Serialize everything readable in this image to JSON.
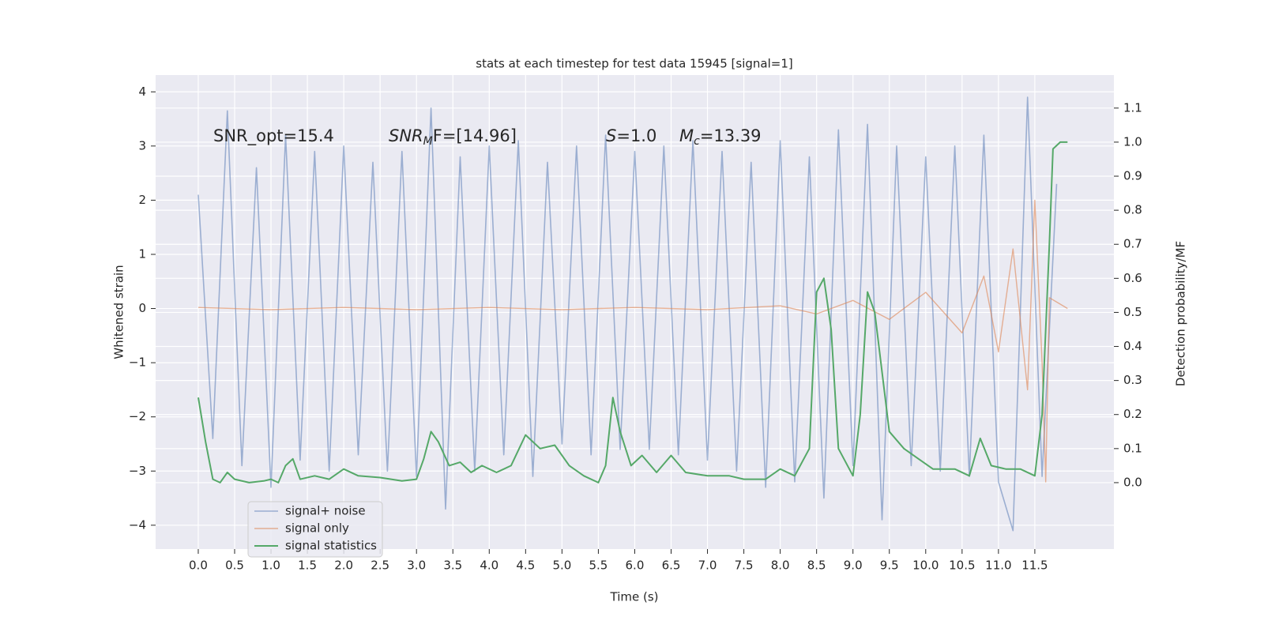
{
  "chart_data": {
    "type": "line",
    "title": "stats at each timestep for test data 15945 [signal=1]",
    "xlabel": "Time (s)",
    "ylabel": "Whitened strain",
    "y2label": "Detection probability/MF",
    "annotations": [
      {
        "base": "SNR_opt=15.4"
      },
      {
        "base": "SNR",
        "sub": "M",
        "rest": "F=[14.96]",
        "italic": true
      },
      {
        "base": "S",
        "rest": "=1.0",
        "italic": true
      },
      {
        "base": "M",
        "sub": "c",
        "rest": "=13.39",
        "italic": true
      }
    ],
    "xlim": [
      -0.586,
      12.587
    ],
    "xticks": [
      {
        "value": 0,
        "label": "0.0"
      },
      {
        "value": 0.5,
        "label": "0.5"
      },
      {
        "value": 1,
        "label": "1.0"
      },
      {
        "value": 1.5,
        "label": "1.5"
      },
      {
        "value": 2,
        "label": "2.0"
      },
      {
        "value": 2.5,
        "label": "2.5"
      },
      {
        "value": 3,
        "label": "3.0"
      },
      {
        "value": 3.5,
        "label": "3.5"
      },
      {
        "value": 4,
        "label": "4.0"
      },
      {
        "value": 4.5,
        "label": "4.5"
      },
      {
        "value": 5,
        "label": "5.0"
      },
      {
        "value": 5.5,
        "label": "5.5"
      },
      {
        "value": 6,
        "label": "6.0"
      },
      {
        "value": 6.5,
        "label": "6.5"
      },
      {
        "value": 7,
        "label": "7.0"
      },
      {
        "value": 7.5,
        "label": "7.5"
      },
      {
        "value": 8,
        "label": "8.0"
      },
      {
        "value": 8.5,
        "label": "8.5"
      },
      {
        "value": 9,
        "label": "9.0"
      },
      {
        "value": 9.5,
        "label": "9.5"
      },
      {
        "value": 10,
        "label": "10.0"
      },
      {
        "value": 10.5,
        "label": "10.5"
      },
      {
        "value": 11,
        "label": "11.0"
      },
      {
        "value": 11.5,
        "label": "11.5"
      }
    ],
    "ylim": [
      -4.44,
      4.31
    ],
    "yticks": [
      {
        "value": -4,
        "label": "−4"
      },
      {
        "value": -3,
        "label": "−3"
      },
      {
        "value": -2,
        "label": "−2"
      },
      {
        "value": -1,
        "label": "−1"
      },
      0,
      1,
      2,
      3,
      4
    ],
    "y2lim": [
      -0.195,
      1.197
    ],
    "y2ticks": [
      {
        "value": 0,
        "label": "0.0"
      },
      {
        "value": 0.1,
        "label": "0.1"
      },
      {
        "value": 0.2,
        "label": "0.2"
      },
      {
        "value": 0.3,
        "label": "0.3"
      },
      {
        "value": 0.4,
        "label": "0.4"
      },
      {
        "value": 0.5,
        "label": "0.5"
      },
      {
        "value": 0.6,
        "label": "0.6"
      },
      {
        "value": 0.7,
        "label": "0.7"
      },
      {
        "value": 0.8,
        "label": "0.8"
      },
      {
        "value": 0.9,
        "label": "0.9"
      },
      {
        "value": 1,
        "label": "1.0"
      },
      {
        "value": 1.1,
        "label": "1.1"
      }
    ],
    "grid": true,
    "legend": "lower left",
    "series": [
      {
        "name": "signal+ noise",
        "color": "#4c72b0",
        "x": [
          0,
          0.2,
          0.4,
          0.6,
          0.8,
          1,
          1.2,
          1.4,
          1.6,
          1.8,
          2,
          2.2,
          2.4,
          2.6,
          2.8,
          3,
          3.2,
          3.4,
          3.6,
          3.8,
          4,
          4.2,
          4.4,
          4.6,
          4.8,
          5,
          5.2,
          5.4,
          5.6,
          5.8,
          6,
          6.2,
          6.4,
          6.6,
          6.8,
          7,
          7.2,
          7.4,
          7.6,
          7.8,
          8,
          8.2,
          8.4,
          8.6,
          8.8,
          9,
          9.2,
          9.4,
          9.6,
          9.8,
          10,
          10.2,
          10.4,
          10.6,
          10.8,
          11,
          11.2,
          11.4,
          11.6,
          11.8
        ],
        "values": [
          2.1,
          -2.4,
          3.65,
          -2.9,
          2.6,
          -3.3,
          3.2,
          -2.8,
          2.9,
          -3.0,
          3.0,
          -2.7,
          2.7,
          -3.0,
          2.9,
          -3.1,
          3.7,
          -3.7,
          2.8,
          -3.0,
          3.0,
          -2.7,
          3.1,
          -3.1,
          2.7,
          -2.5,
          3.0,
          -2.7,
          3.2,
          -2.6,
          2.9,
          -2.6,
          3.0,
          -2.7,
          3.1,
          -2.8,
          2.9,
          -3.0,
          2.7,
          -3.3,
          3.1,
          -3.2,
          2.8,
          -3.5,
          3.3,
          -2.9,
          3.4,
          -3.9,
          3.0,
          -2.9,
          2.8,
          -3.0,
          3.0,
          -3.1,
          3.2,
          -3.2,
          -4.1,
          3.9,
          -3.1,
          2.3
        ]
      },
      {
        "name": "signal only",
        "color": "#dd8452",
        "x": [
          0,
          1,
          2,
          3,
          4,
          5,
          6,
          7,
          8,
          8.5,
          9,
          9.5,
          10,
          10.5,
          10.8,
          11,
          11.2,
          11.4,
          11.5,
          11.6,
          11.65,
          11.7,
          11.95
        ],
        "values": [
          0.02,
          -0.02,
          0.02,
          -0.02,
          0.02,
          -0.02,
          0.02,
          -0.02,
          0.05,
          -0.1,
          0.15,
          -0.2,
          0.3,
          -0.45,
          0.6,
          -0.8,
          1.1,
          -1.5,
          2.0,
          -1.0,
          -3.2,
          0.2,
          0.0
        ]
      },
      {
        "name": "signal statistics",
        "color": "#55a868",
        "axis": "y2",
        "x": [
          0,
          0.1,
          0.2,
          0.3,
          0.4,
          0.5,
          0.7,
          0.9,
          1.0,
          1.1,
          1.2,
          1.3,
          1.4,
          1.6,
          1.8,
          2.0,
          2.2,
          2.5,
          2.8,
          3.0,
          3.1,
          3.2,
          3.3,
          3.45,
          3.6,
          3.75,
          3.9,
          4.1,
          4.3,
          4.5,
          4.7,
          4.9,
          5.1,
          5.3,
          5.5,
          5.6,
          5.7,
          5.8,
          5.95,
          6.1,
          6.3,
          6.5,
          6.7,
          7.0,
          7.3,
          7.5,
          7.8,
          8.0,
          8.2,
          8.4,
          8.5,
          8.6,
          8.7,
          8.8,
          9.0,
          9.1,
          9.2,
          9.3,
          9.5,
          9.7,
          9.9,
          10.1,
          10.4,
          10.6,
          10.75,
          10.9,
          11.1,
          11.3,
          11.5,
          11.6,
          11.7,
          11.75,
          11.85,
          11.95
        ],
        "values": [
          0.25,
          0.12,
          0.01,
          0.0,
          0.03,
          0.01,
          0.0,
          0.005,
          0.01,
          0.0,
          0.05,
          0.07,
          0.01,
          0.02,
          0.01,
          0.04,
          0.02,
          0.015,
          0.005,
          0.01,
          0.07,
          0.15,
          0.12,
          0.05,
          0.06,
          0.03,
          0.05,
          0.03,
          0.05,
          0.14,
          0.1,
          0.11,
          0.05,
          0.02,
          0.0,
          0.05,
          0.25,
          0.15,
          0.05,
          0.08,
          0.03,
          0.08,
          0.03,
          0.02,
          0.02,
          0.01,
          0.01,
          0.04,
          0.02,
          0.1,
          0.56,
          0.6,
          0.45,
          0.1,
          0.02,
          0.2,
          0.56,
          0.5,
          0.15,
          0.1,
          0.07,
          0.04,
          0.04,
          0.02,
          0.13,
          0.05,
          0.04,
          0.04,
          0.02,
          0.2,
          0.7,
          0.98,
          1.0,
          1.0
        ]
      }
    ]
  }
}
